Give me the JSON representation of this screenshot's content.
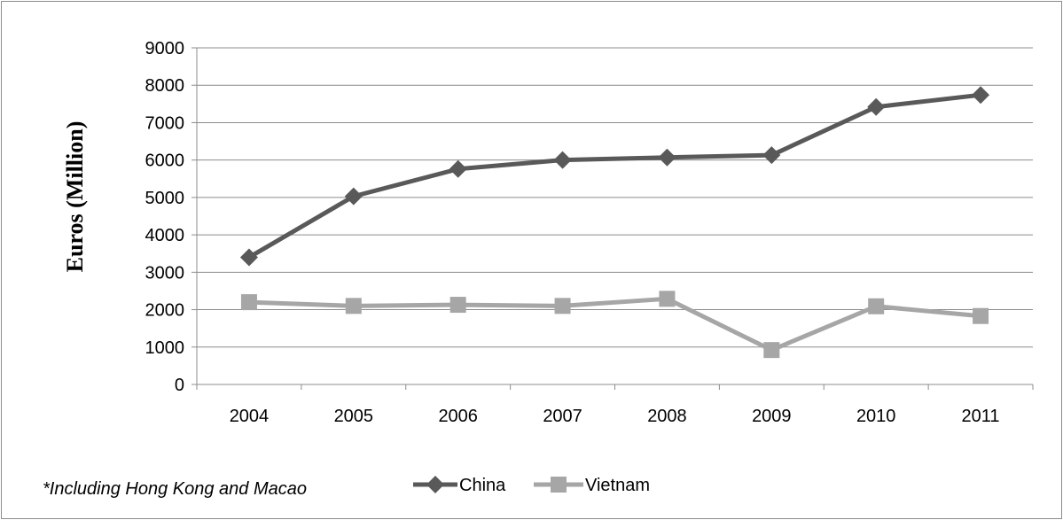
{
  "chart_data": {
    "type": "line",
    "title": "",
    "xlabel": "",
    "ylabel": "Euros (Million)",
    "categories": [
      "2004",
      "2005",
      "2006",
      "2007",
      "2008",
      "2009",
      "2010",
      "2011"
    ],
    "ylim": [
      0,
      9000
    ],
    "yticks": [
      "0",
      "1000",
      "2000",
      "3000",
      "4000",
      "5000",
      "6000",
      "7000",
      "8000",
      "9000"
    ],
    "grid": true,
    "legend_position": "bottom",
    "series": [
      {
        "name": "China",
        "marker": "diamond",
        "color": "#595959",
        "values": [
          3400,
          5030,
          5760,
          6000,
          6070,
          6130,
          7420,
          7740
        ]
      },
      {
        "name": "Vietnam",
        "marker": "square",
        "color": "#a6a6a6",
        "values": [
          2200,
          2100,
          2130,
          2100,
          2290,
          920,
          2090,
          1830
        ]
      }
    ],
    "footnote": "*Including Hong Kong and Macao"
  }
}
